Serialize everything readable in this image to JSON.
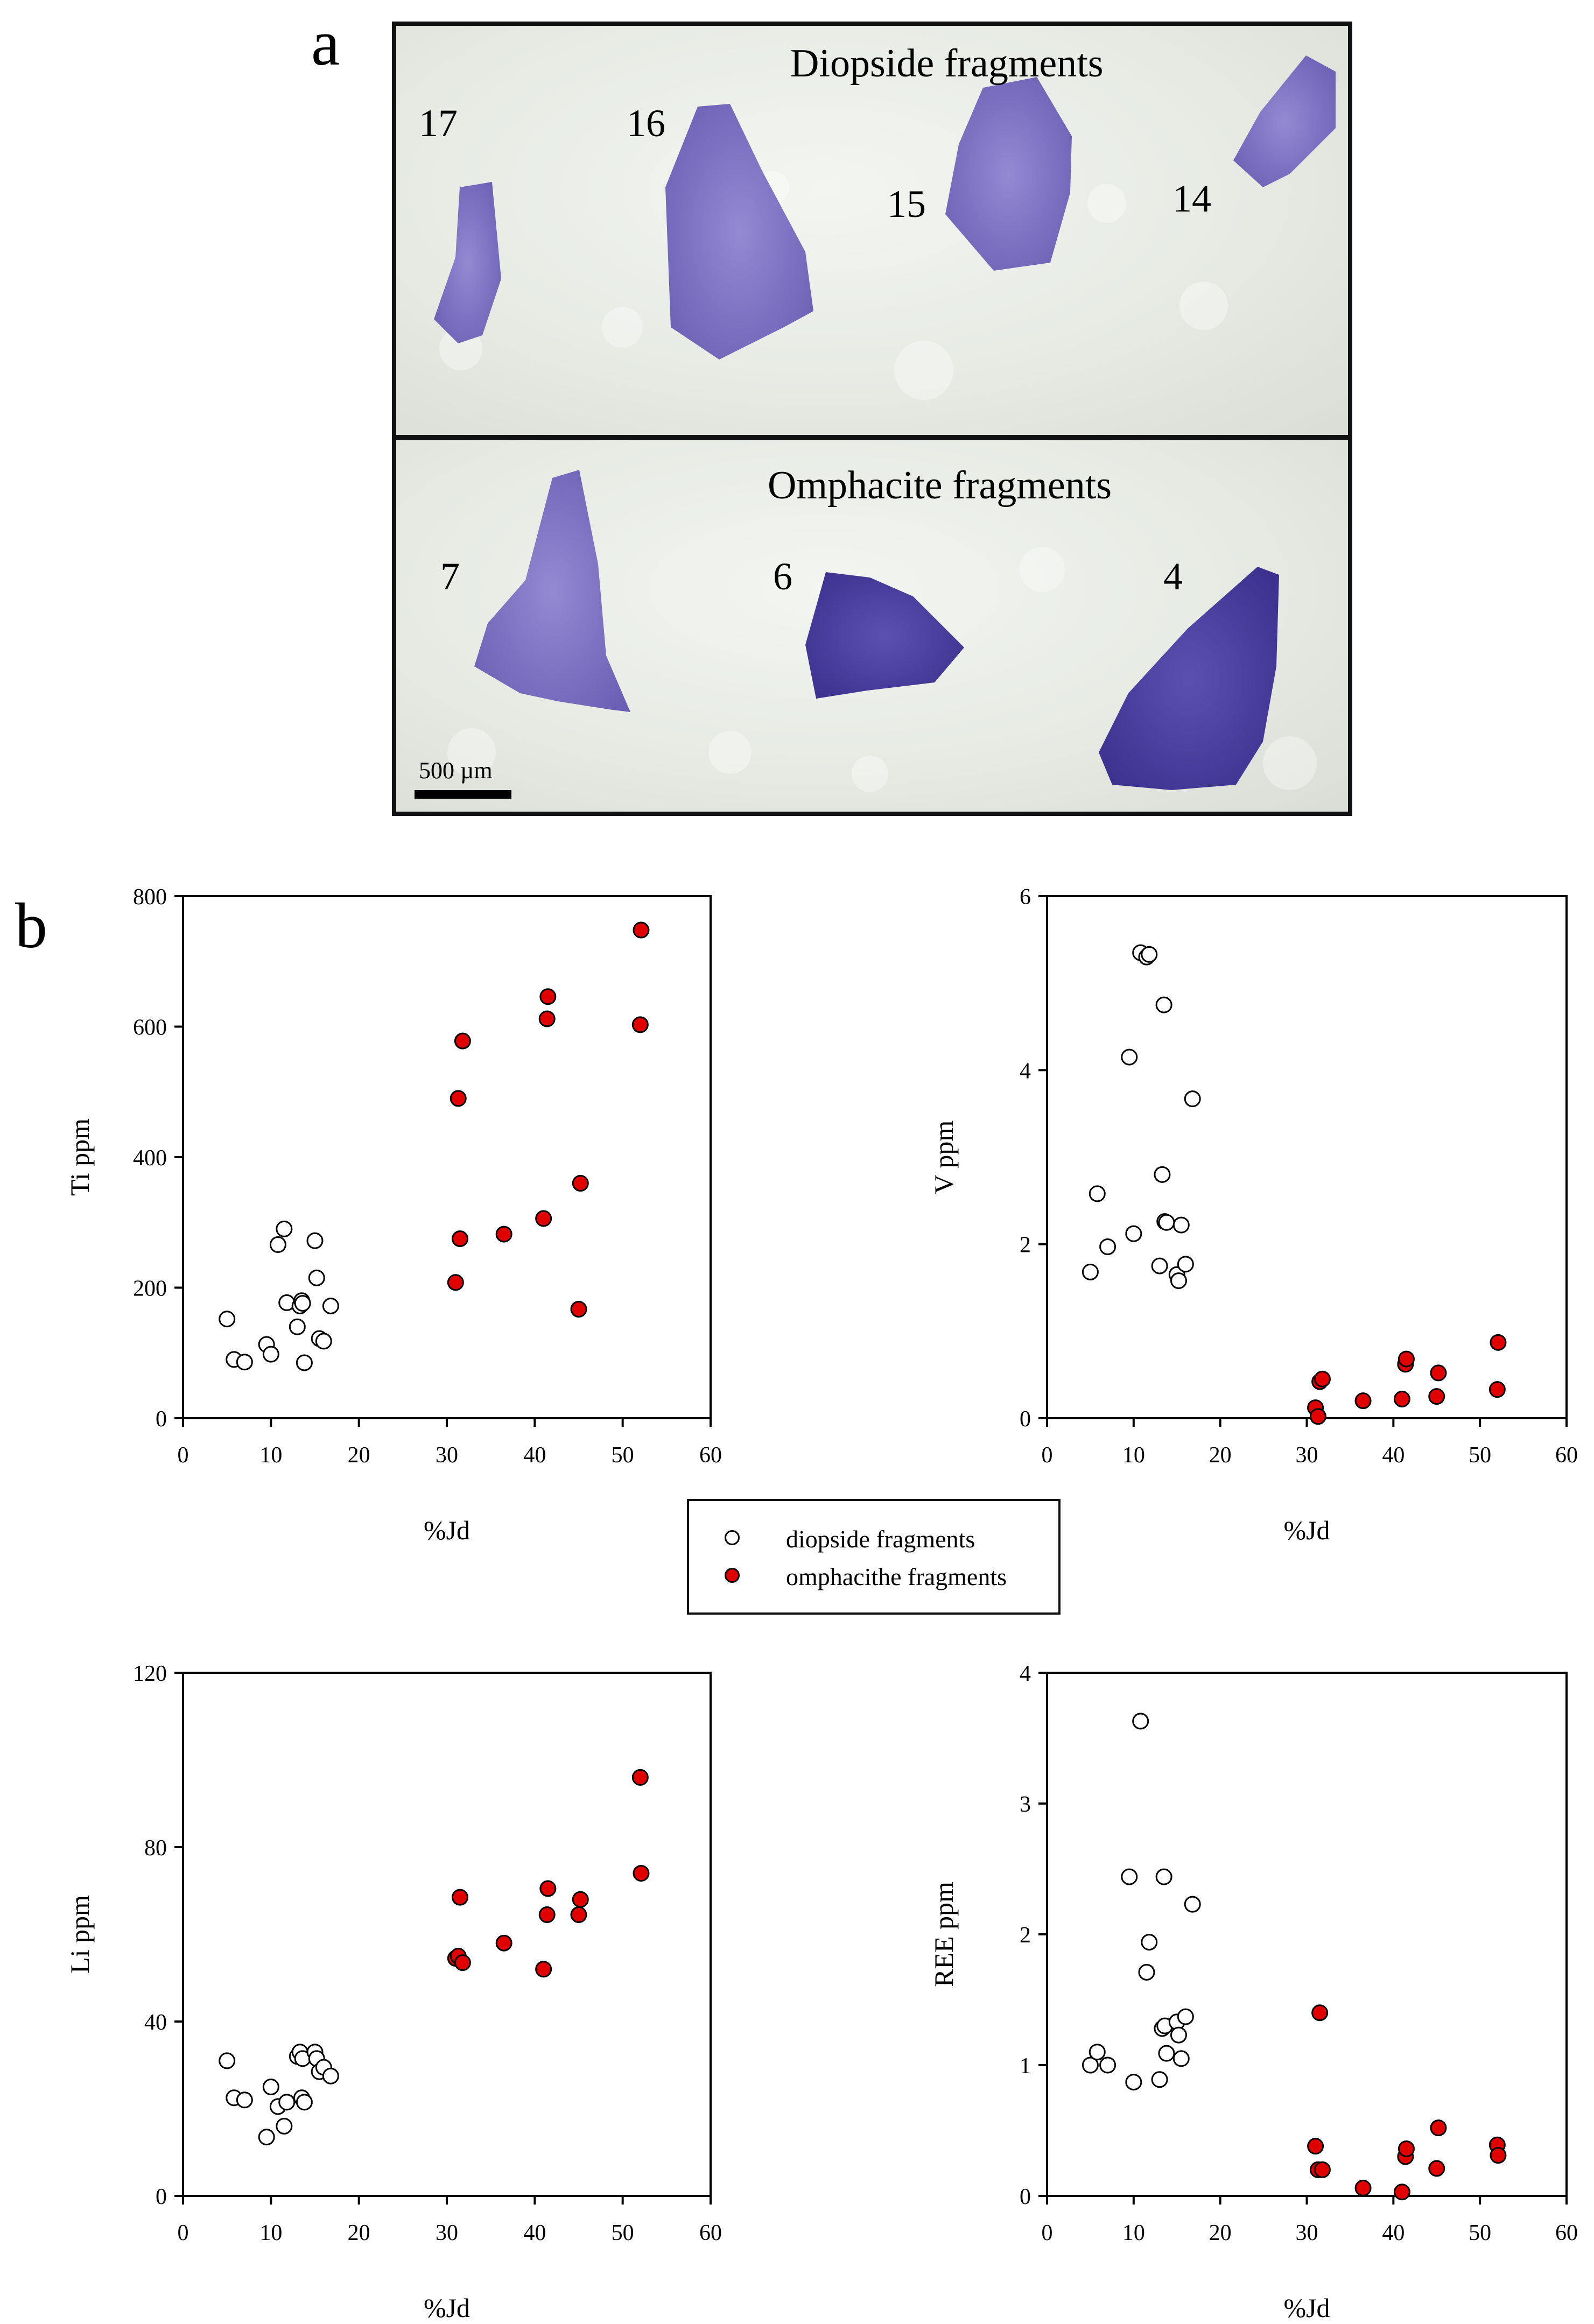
{
  "panel_a": {
    "label": "a",
    "top_title": "Diopside fragments",
    "bottom_title": "Omphacite fragments",
    "diopside_numbers": [
      "17",
      "16",
      "15",
      "14"
    ],
    "omphacite_numbers": [
      "7",
      "6",
      "4"
    ],
    "scale_bar": "500 µm"
  },
  "panel_b": {
    "label": "b"
  },
  "colors": {
    "omphacite": "#e00000",
    "diopside_fill": "#ffffff",
    "stroke": "#000000",
    "fragment": "#7d72c2"
  },
  "legend": {
    "diopside": "diopside fragments",
    "omphacite": "omphacithe fragments"
  },
  "chart_data": [
    {
      "type": "scatter",
      "id": "ti",
      "xlabel": "%Jd",
      "ylabel": "Ti ppm",
      "xlim": [
        0,
        60
      ],
      "ylim": [
        0,
        800
      ],
      "xticks": [
        0,
        10,
        20,
        30,
        40,
        50,
        60
      ],
      "yticks": [
        0,
        200,
        400,
        600,
        800
      ],
      "series": [
        {
          "name": "diopside fragments",
          "x": [
            5,
            5.8,
            7,
            9.5,
            10,
            10.8,
            11.5,
            11.8,
            13,
            13.3,
            13.5,
            13.6,
            13.8,
            15,
            15.2,
            15.5,
            16,
            16.8
          ],
          "y": [
            152,
            90,
            86,
            113,
            98,
            266,
            290,
            177,
            140,
            172,
            180,
            176,
            85,
            272,
            215,
            122,
            118,
            172
          ]
        },
        {
          "name": "omphacithe fragments",
          "x": [
            31,
            31.3,
            31.5,
            31.8,
            36.5,
            41,
            41.4,
            41.5,
            45,
            45.2,
            52,
            52.1
          ],
          "y": [
            208,
            490,
            275,
            578,
            282,
            306,
            612,
            646,
            167,
            360,
            603,
            748
          ]
        }
      ]
    },
    {
      "type": "scatter",
      "id": "v",
      "xlabel": "%Jd",
      "ylabel": "V ppm",
      "xlim": [
        0,
        60
      ],
      "ylim": [
        0,
        6
      ],
      "xticks": [
        0,
        10,
        20,
        30,
        40,
        50,
        60
      ],
      "yticks": [
        0,
        2,
        4,
        6
      ],
      "series": [
        {
          "name": "diopside fragments",
          "x": [
            5,
            5.8,
            7,
            9.5,
            10,
            10.8,
            11.5,
            11.8,
            13,
            13.3,
            13.5,
            13.6,
            13.8,
            15,
            15.2,
            15.5,
            16,
            16.8
          ],
          "y": [
            1.68,
            2.58,
            1.97,
            4.15,
            2.12,
            5.35,
            5.3,
            5.33,
            1.75,
            2.8,
            4.75,
            2.26,
            2.25,
            1.65,
            1.58,
            2.22,
            1.77,
            3.67
          ]
        },
        {
          "name": "omphacithe fragments",
          "x": [
            31,
            31.3,
            31.5,
            31.8,
            36.5,
            41,
            41.4,
            41.5,
            45,
            45.2,
            52,
            52.1
          ],
          "y": [
            0.12,
            0.02,
            0.42,
            0.45,
            0.2,
            0.22,
            0.62,
            0.68,
            0.25,
            0.52,
            0.33,
            0.87
          ]
        }
      ]
    },
    {
      "type": "scatter",
      "id": "li",
      "xlabel": "%Jd",
      "ylabel": "Li ppm",
      "xlim": [
        0,
        60
      ],
      "ylim": [
        0,
        120
      ],
      "xticks": [
        0,
        10,
        20,
        30,
        40,
        50,
        60
      ],
      "yticks": [
        0,
        40,
        80,
        120
      ],
      "series": [
        {
          "name": "diopside fragments",
          "x": [
            5,
            5.8,
            7,
            9.5,
            10,
            10.8,
            11.5,
            11.8,
            13,
            13.3,
            13.5,
            13.6,
            13.8,
            15,
            15.2,
            15.5,
            16,
            16.8
          ],
          "y": [
            31,
            22.5,
            22,
            13.5,
            25,
            20.5,
            16,
            21.5,
            32,
            33,
            22.5,
            31.5,
            21.5,
            33,
            31.5,
            28.5,
            29.5,
            27.5
          ]
        },
        {
          "name": "omphacithe fragments",
          "x": [
            31,
            31.3,
            31.5,
            31.8,
            36.5,
            41,
            41.4,
            41.5,
            45,
            45.2,
            52,
            52.1
          ],
          "y": [
            54.5,
            55,
            68.5,
            53.5,
            58,
            52,
            64.5,
            70.5,
            64.5,
            68,
            96,
            74
          ]
        }
      ]
    },
    {
      "type": "scatter",
      "id": "ree",
      "xlabel": "%Jd",
      "ylabel": "REE ppm",
      "xlim": [
        0,
        60
      ],
      "ylim": [
        0,
        4
      ],
      "xticks": [
        0,
        10,
        20,
        30,
        40,
        50,
        60
      ],
      "yticks": [
        0,
        1,
        2,
        3,
        4
      ],
      "series": [
        {
          "name": "diopside fragments",
          "x": [
            5,
            5.8,
            7,
            9.5,
            10,
            10.8,
            11.5,
            11.8,
            13,
            13.3,
            13.5,
            13.6,
            13.8,
            15,
            15.2,
            15.5,
            16,
            16.8
          ],
          "y": [
            1.0,
            1.1,
            1.0,
            2.44,
            0.87,
            3.63,
            1.71,
            1.94,
            0.89,
            1.28,
            2.44,
            1.3,
            1.09,
            1.33,
            1.23,
            1.05,
            1.37,
            2.23
          ]
        },
        {
          "name": "omphacithe fragments",
          "x": [
            31,
            31.3,
            31.5,
            31.8,
            36.5,
            41,
            41.4,
            41.5,
            45,
            45.2,
            52,
            52.1
          ],
          "y": [
            0.38,
            0.2,
            1.4,
            0.2,
            0.06,
            0.03,
            0.3,
            0.36,
            0.21,
            0.52,
            0.39,
            0.31
          ]
        }
      ]
    }
  ]
}
